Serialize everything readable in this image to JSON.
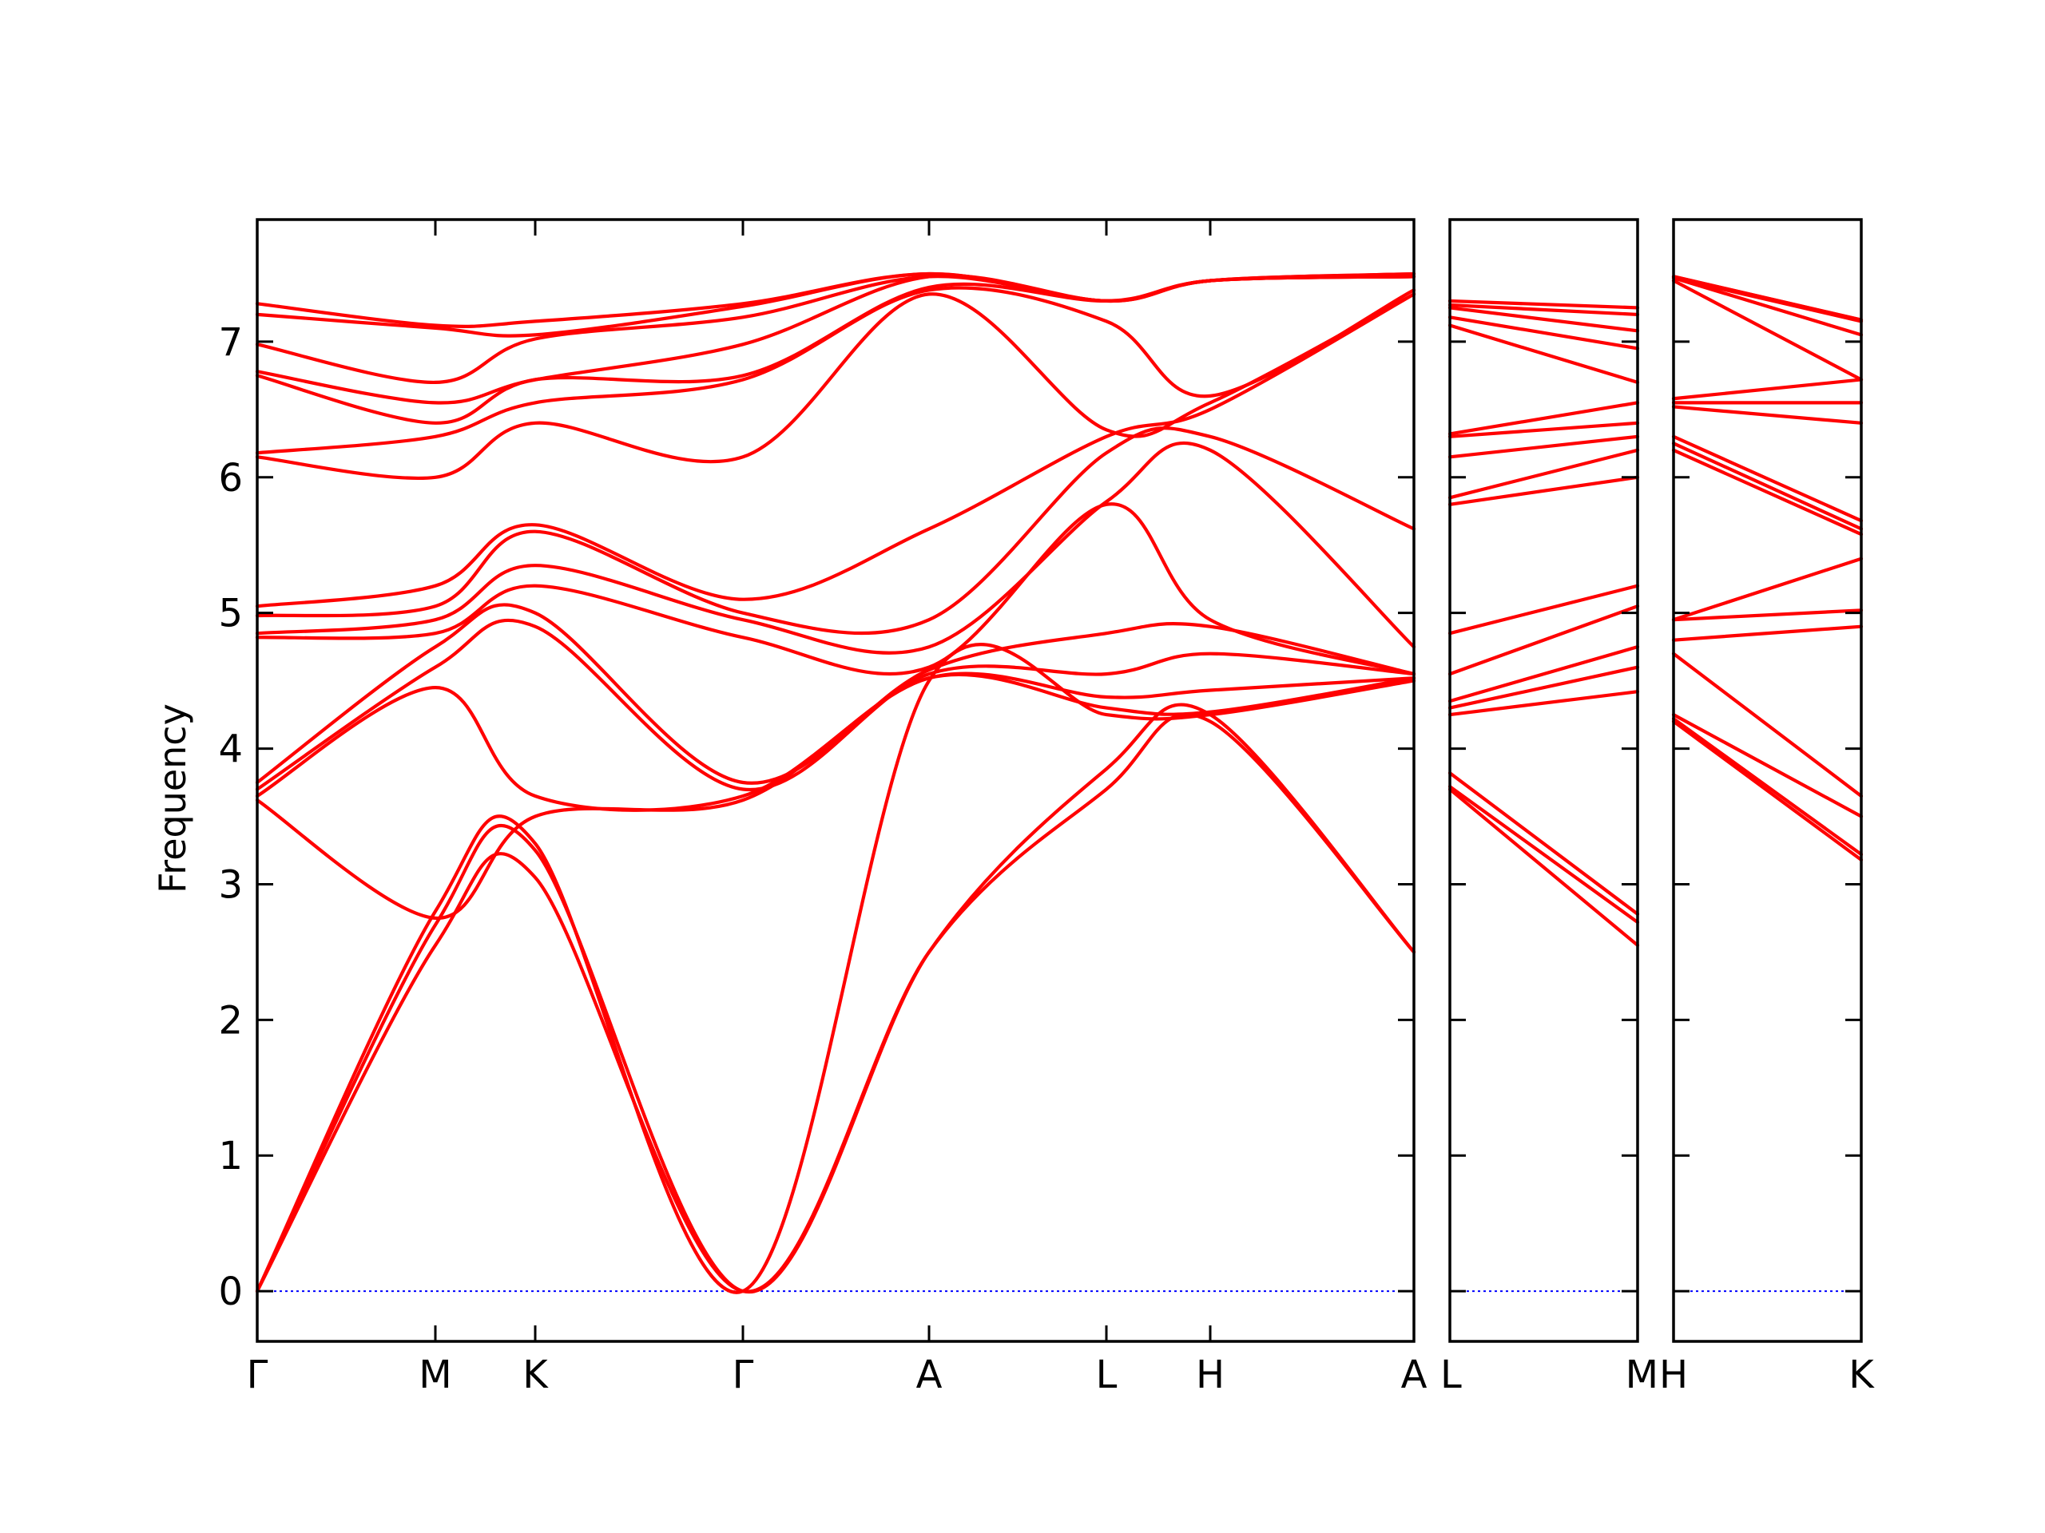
{
  "chart_data": {
    "type": "line",
    "title": "",
    "ylabel": "Frequency",
    "ylim": [
      -0.37,
      7.9
    ],
    "yticks": [
      0,
      1,
      2,
      3,
      4,
      5,
      6,
      7
    ],
    "grid": false,
    "colors": {
      "bands": "#ff0000",
      "zero_line": "#0000ff"
    },
    "panels": [
      {
        "path": [
          "Γ",
          "M",
          "K",
          "Γ",
          "A",
          "L",
          "H",
          "A"
        ],
        "bands": [
          [
            0.0,
            2.55,
            3.05,
            0.0,
            2.5,
            3.7,
            4.2,
            2.5
          ],
          [
            0.0,
            2.7,
            3.25,
            0.0,
            2.5,
            3.85,
            4.25,
            2.5
          ],
          [
            0.0,
            2.8,
            3.3,
            0.0,
            4.5,
            4.25,
            4.25,
            4.5
          ],
          [
            3.62,
            2.75,
            3.5,
            3.62,
            4.52,
            4.3,
            4.27,
            4.52
          ],
          [
            3.65,
            4.45,
            3.65,
            3.65,
            4.52,
            4.38,
            4.43,
            4.52
          ],
          [
            3.7,
            4.6,
            4.9,
            3.7,
            4.55,
            4.55,
            4.7,
            4.55
          ],
          [
            3.75,
            4.75,
            5.0,
            3.75,
            4.58,
            4.85,
            4.9,
            4.55
          ],
          [
            4.82,
            4.85,
            5.2,
            4.82,
            4.6,
            5.8,
            4.95,
            4.55
          ],
          [
            4.85,
            4.95,
            5.35,
            4.95,
            4.75,
            5.82,
            6.2,
            4.75
          ],
          [
            4.98,
            5.05,
            5.6,
            5.0,
            4.95,
            6.18,
            6.3,
            5.62
          ],
          [
            5.05,
            5.2,
            5.65,
            5.1,
            5.62,
            6.3,
            6.5,
            7.35
          ],
          [
            6.15,
            6.0,
            6.4,
            6.15,
            7.35,
            6.35,
            6.55,
            7.35
          ],
          [
            6.18,
            6.3,
            6.55,
            6.72,
            7.38,
            7.15,
            6.6,
            7.38
          ],
          [
            6.75,
            6.4,
            6.72,
            6.75,
            7.4,
            7.3,
            7.45,
            7.48
          ],
          [
            6.78,
            6.55,
            6.72,
            6.98,
            7.48,
            7.3,
            7.45,
            7.48
          ],
          [
            6.98,
            6.7,
            7.02,
            7.18,
            7.48,
            7.3,
            7.45,
            7.48
          ],
          [
            7.2,
            7.1,
            7.05,
            7.26,
            7.5,
            7.3,
            7.45,
            7.5
          ],
          [
            7.28,
            7.12,
            7.15,
            7.28,
            7.5,
            7.3,
            7.45,
            7.5
          ]
        ]
      },
      {
        "path": [
          "L",
          "M"
        ],
        "bands": [
          [
            3.7,
            2.55
          ],
          [
            3.72,
            2.72
          ],
          [
            3.82,
            2.78
          ],
          [
            4.25,
            4.42
          ],
          [
            4.3,
            4.6
          ],
          [
            4.35,
            4.75
          ],
          [
            4.55,
            5.05
          ],
          [
            4.85,
            5.2
          ],
          [
            5.8,
            6.0
          ],
          [
            5.85,
            6.2
          ],
          [
            6.15,
            6.3
          ],
          [
            6.3,
            6.4
          ],
          [
            6.32,
            6.55
          ],
          [
            7.12,
            6.7
          ],
          [
            7.18,
            6.95
          ],
          [
            7.25,
            7.08
          ],
          [
            7.27,
            7.2
          ],
          [
            7.3,
            7.25
          ]
        ]
      },
      {
        "path": [
          "H",
          "K"
        ],
        "bands": [
          [
            4.2,
            3.18
          ],
          [
            4.22,
            3.22
          ],
          [
            4.25,
            3.5
          ],
          [
            4.7,
            3.65
          ],
          [
            4.8,
            4.9
          ],
          [
            4.95,
            5.02
          ],
          [
            4.95,
            5.4
          ],
          [
            6.2,
            5.58
          ],
          [
            6.25,
            5.62
          ],
          [
            6.3,
            5.68
          ],
          [
            6.52,
            6.4
          ],
          [
            6.55,
            6.55
          ],
          [
            6.58,
            6.72
          ],
          [
            7.45,
            6.72
          ],
          [
            7.47,
            7.05
          ],
          [
            7.47,
            7.15
          ],
          [
            7.48,
            7.16
          ],
          [
            7.48,
            7.16
          ]
        ]
      }
    ]
  }
}
